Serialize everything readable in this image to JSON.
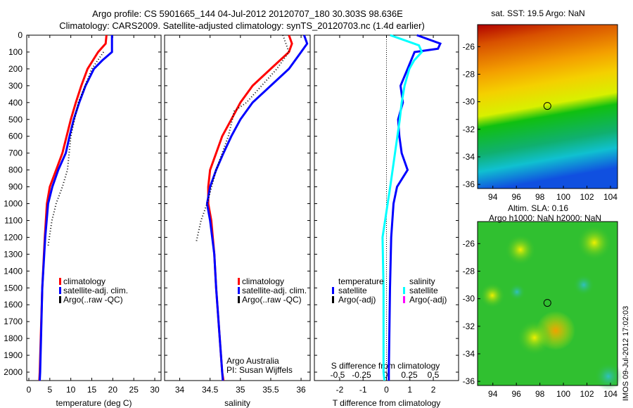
{
  "title_line1": "Argo profile: CS 5901665_144 04-Jul-2012 20120707_180 30.303S 98.636E",
  "title_line2": "Climatology: CARS2009. Satellite-adjusted climatology: synTS_20120703.nc (1.4d earlier)",
  "side_stamp": "IMOS 09-Jul-2012 17:02:03",
  "colors": {
    "climatology": "#ff0000",
    "satellite": "#0000ff",
    "argo": "#000000",
    "sal_sat": "#00ffff",
    "sal_argo": "#ff00ff"
  },
  "chart_data": [
    {
      "type": "line",
      "id": "temperature",
      "xlabel": "temperature (deg C)",
      "xlim": [
        -0.5,
        31.5
      ],
      "ylim": [
        0,
        2050
      ],
      "y_reversed": true,
      "xticks": [
        0,
        5,
        10,
        15,
        20,
        25,
        30
      ],
      "yticks": [
        0,
        100,
        200,
        300,
        400,
        500,
        600,
        700,
        800,
        900,
        1000,
        1100,
        1200,
        1300,
        1400,
        1500,
        1600,
        1700,
        1800,
        1900,
        2000
      ],
      "legend": [
        "climatology",
        "satellite-adj. clim.",
        "Argo(..raw -QC)"
      ],
      "series": [
        {
          "name": "climatology",
          "color": "#ff0000",
          "points": [
            [
              18.5,
              0
            ],
            [
              18.3,
              50
            ],
            [
              16.5,
              100
            ],
            [
              14,
              200
            ],
            [
              12.5,
              300
            ],
            [
              11.2,
              400
            ],
            [
              10,
              500
            ],
            [
              9,
              600
            ],
            [
              8,
              700
            ],
            [
              6.5,
              800
            ],
            [
              5,
              900
            ],
            [
              4.3,
              1000
            ],
            [
              3.8,
              1200
            ],
            [
              3.2,
              1500
            ],
            [
              2.6,
              2000
            ],
            [
              2.5,
              2050
            ]
          ]
        },
        {
          "name": "satellite-adj. clim.",
          "color": "#0000ff",
          "points": [
            [
              19.8,
              0
            ],
            [
              19.8,
              100
            ],
            [
              17.5,
              150
            ],
            [
              15.5,
              200
            ],
            [
              13.5,
              300
            ],
            [
              12,
              400
            ],
            [
              10.7,
              500
            ],
            [
              9.7,
              600
            ],
            [
              8.8,
              700
            ],
            [
              7,
              800
            ],
            [
              5.6,
              900
            ],
            [
              4.6,
              1000
            ],
            [
              3.9,
              1200
            ],
            [
              3.2,
              1500
            ],
            [
              2.7,
              2000
            ],
            [
              2.6,
              2050
            ]
          ]
        },
        {
          "name": "Argo(..raw -QC)",
          "color": "#000000",
          "dotted": true,
          "points": [
            [
              17.8,
              100
            ],
            [
              15,
              200
            ],
            [
              11.8,
              400
            ],
            [
              10,
              600
            ],
            [
              9.2,
              800
            ],
            [
              8,
              900
            ],
            [
              6.5,
              1000
            ],
            [
              5.5,
              1100
            ],
            [
              4.6,
              1250
            ]
          ]
        }
      ]
    },
    {
      "type": "line",
      "id": "salinity",
      "xlabel": "salinity",
      "xlim": [
        33.75,
        36.15
      ],
      "ylim": [
        0,
        2050
      ],
      "y_reversed": true,
      "xticks": [
        34,
        34.5,
        35,
        35.5,
        36
      ],
      "legend": [
        "climatology",
        "satellite-adj. clim.",
        "Argo(..raw -QC)"
      ],
      "annotation": [
        "Argo Australia",
        "PI: Susan Wijffels"
      ],
      "series": [
        {
          "name": "climatology",
          "color": "#ff0000",
          "points": [
            [
              35.8,
              0
            ],
            [
              35.85,
              50
            ],
            [
              35.8,
              100
            ],
            [
              35.5,
              200
            ],
            [
              35.2,
              300
            ],
            [
              35.0,
              400
            ],
            [
              34.85,
              500
            ],
            [
              34.7,
              600
            ],
            [
              34.6,
              700
            ],
            [
              34.5,
              800
            ],
            [
              34.47,
              900
            ],
            [
              34.47,
              1000
            ],
            [
              34.52,
              1100
            ],
            [
              34.57,
              1300
            ],
            [
              34.6,
              1500
            ],
            [
              34.7,
              2000
            ],
            [
              34.72,
              2050
            ]
          ]
        },
        {
          "name": "satellite-adj. clim.",
          "color": "#0000ff",
          "points": [
            [
              36.05,
              0
            ],
            [
              36.1,
              50
            ],
            [
              36.0,
              100
            ],
            [
              35.8,
              200
            ],
            [
              35.5,
              300
            ],
            [
              35.2,
              400
            ],
            [
              35.0,
              500
            ],
            [
              34.85,
              600
            ],
            [
              34.72,
              700
            ],
            [
              34.6,
              800
            ],
            [
              34.5,
              900
            ],
            [
              34.45,
              1000
            ],
            [
              34.5,
              1100
            ],
            [
              34.57,
              1300
            ],
            [
              34.6,
              1500
            ],
            [
              34.7,
              2000
            ],
            [
              34.71,
              2050
            ]
          ]
        },
        {
          "name": "Argo(..raw -QC)",
          "color": "#000000",
          "dotted": true,
          "points": [
            [
              35.7,
              0
            ],
            [
              35.8,
              100
            ],
            [
              35.6,
              200
            ],
            [
              35.1,
              400
            ],
            [
              34.9,
              450
            ],
            [
              34.8,
              600
            ],
            [
              34.6,
              800
            ],
            [
              34.45,
              1000
            ],
            [
              34.35,
              1100
            ],
            [
              34.27,
              1230
            ]
          ]
        }
      ]
    },
    {
      "type": "line",
      "id": "difference",
      "xlabel": "T difference from climatology",
      "xlabel2": "S difference from climatology",
      "xlim": [
        -3.08,
        3.08
      ],
      "ylim": [
        0,
        2050
      ],
      "y_reversed": true,
      "xticks": [
        -2,
        -1,
        0,
        1,
        2
      ],
      "xticks2": [
        "-0.5",
        "-0.25",
        "0",
        "0.25",
        "0.5"
      ],
      "legend": {
        "temperature": {
          "title": "temperature",
          "items": [
            "satellite",
            "Argo(-adj)"
          ]
        },
        "salinity": {
          "title": "salinity",
          "items": [
            "satellite",
            "Argo(-adj)"
          ]
        }
      },
      "series": [
        {
          "name": "T satellite",
          "color": "#0000ff",
          "points": [
            [
              1.3,
              0
            ],
            [
              2.3,
              50
            ],
            [
              2.2,
              80
            ],
            [
              1.2,
              100
            ],
            [
              0.9,
              200
            ],
            [
              0.6,
              300
            ],
            [
              0.7,
              400
            ],
            [
              0.5,
              500
            ],
            [
              0.55,
              600
            ],
            [
              0.65,
              700
            ],
            [
              0.9,
              800
            ],
            [
              0.45,
              900
            ],
            [
              0.3,
              1000
            ],
            [
              0.2,
              1200
            ],
            [
              0.15,
              1500
            ],
            [
              0.1,
              2000
            ],
            [
              0.1,
              2050
            ]
          ]
        },
        {
          "name": "S satellite",
          "color": "#00ffff",
          "s_units": true,
          "points": [
            [
              0.05,
              0
            ],
            [
              0.2,
              30
            ],
            [
              0.35,
              60
            ],
            [
              0.38,
              100
            ],
            [
              0.3,
              150
            ],
            [
              0.25,
              200
            ],
            [
              0.2,
              300
            ],
            [
              0.17,
              400
            ],
            [
              0.15,
              500
            ],
            [
              0.1,
              700
            ],
            [
              0.05,
              900
            ],
            [
              -0.03,
              1200
            ],
            [
              -0.02,
              1500
            ],
            [
              -0.02,
              2000
            ],
            [
              -0.01,
              2050
            ]
          ]
        }
      ]
    },
    {
      "type": "heatmap",
      "id": "sst_map",
      "title": "sat. SST: 19.5 Argo: NaN",
      "xticks": [
        94,
        96,
        98,
        100,
        102,
        104
      ],
      "yticks": [
        -26,
        -28,
        -30,
        -32,
        -34,
        -36
      ],
      "xlim": [
        92.7,
        104.6
      ],
      "ylim": [
        -36.3,
        -24.4
      ],
      "marker": [
        98.636,
        -30.303
      ]
    },
    {
      "type": "heatmap",
      "id": "sla_map",
      "title": "Altim. SLA: 0.16",
      "title2": "Argo h1000: NaN h2000: NaN",
      "xticks": [
        94,
        96,
        98,
        100,
        102,
        104
      ],
      "yticks": [
        -26,
        -28,
        -30,
        -32,
        -34,
        -36
      ],
      "xlim": [
        92.7,
        104.6
      ],
      "ylim": [
        -36.3,
        -24.4
      ],
      "marker": [
        98.636,
        -30.303
      ]
    }
  ]
}
